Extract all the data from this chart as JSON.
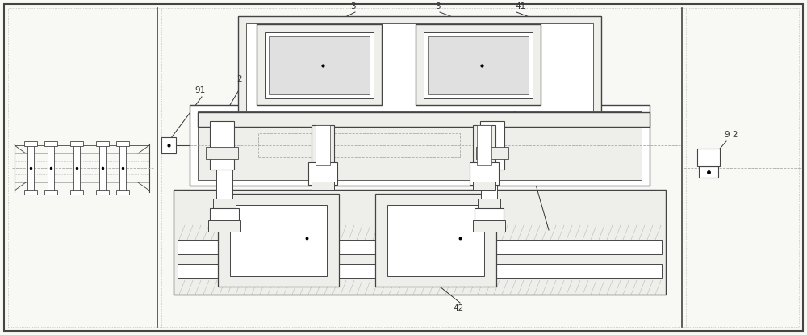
{
  "bg_color": "#f8f8f5",
  "border_color": "#444444",
  "line_color": "#444444",
  "light_gray": "#cccccc",
  "mid_gray": "#aaaaaa",
  "dark_gray": "#666666",
  "fill_light": "#eeeeea",
  "fill_white": "#ffffff",
  "label_color": "#333333"
}
